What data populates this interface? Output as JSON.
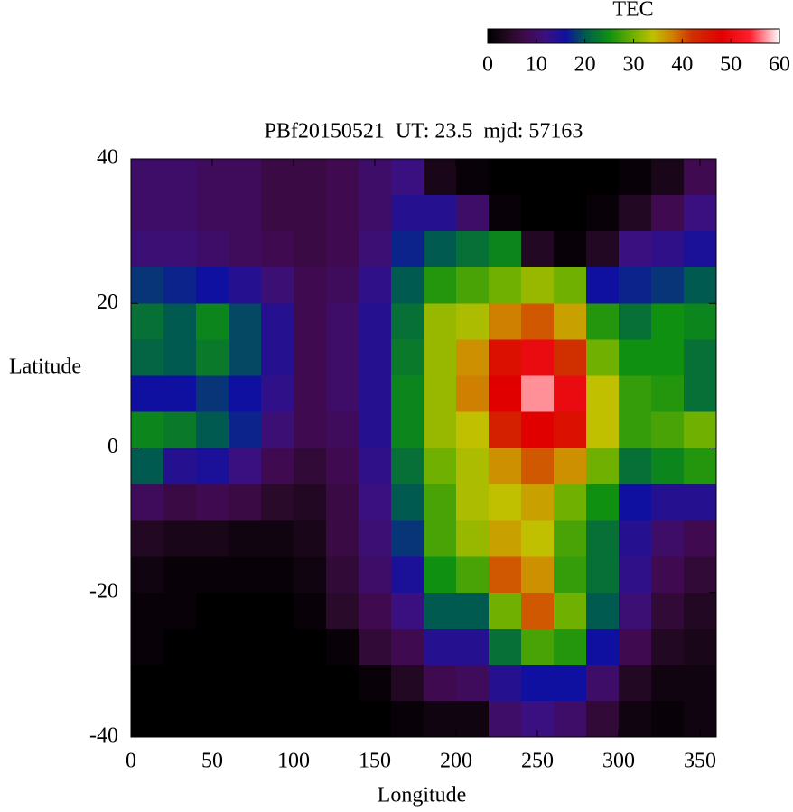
{
  "chart_data": {
    "type": "heatmap",
    "title": "PBf20150521  UT: 23.5  mjd: 57163",
    "xlabel": "Longitude",
    "ylabel": "Latitude",
    "xlim": [
      0,
      360
    ],
    "ylim": [
      -40,
      40
    ],
    "xticks": [
      0,
      50,
      100,
      150,
      200,
      250,
      300,
      350
    ],
    "yticks": [
      -40,
      -20,
      0,
      20,
      40
    ],
    "x_edges": [
      0,
      20,
      40,
      60,
      80,
      100,
      120,
      140,
      160,
      180,
      200,
      220,
      240,
      260,
      280,
      300,
      320,
      340,
      360
    ],
    "y_edges": [
      40,
      35,
      30,
      25,
      20,
      15,
      10,
      5,
      0,
      -5,
      -10,
      -15,
      -20,
      -25,
      -30,
      -35,
      -40
    ],
    "z": [
      [
        10,
        10,
        9,
        9,
        7,
        7,
        8,
        10,
        12,
        3,
        1,
        0,
        0,
        0,
        0,
        1,
        3,
        8
      ],
      [
        10,
        10,
        9,
        9,
        7,
        7,
        8,
        10,
        14,
        14,
        10,
        1,
        0,
        0,
        1,
        4,
        8,
        12
      ],
      [
        11,
        11,
        10,
        9,
        8,
        7,
        8,
        11,
        17,
        20,
        22,
        24,
        4,
        1,
        4,
        12,
        13,
        15
      ],
      [
        18,
        17,
        16,
        14,
        11,
        8,
        9,
        13,
        20,
        26,
        28,
        30,
        32,
        30,
        16,
        17,
        18,
        20
      ],
      [
        22,
        20,
        24,
        19,
        14,
        8,
        10,
        14,
        22,
        32,
        33,
        38,
        40,
        36,
        26,
        22,
        25,
        24
      ],
      [
        21,
        20,
        23,
        19,
        14,
        8,
        10,
        14,
        23,
        32,
        37,
        46,
        50,
        42,
        30,
        25,
        25,
        22
      ],
      [
        16,
        16,
        18,
        16,
        13,
        8,
        10,
        14,
        24,
        32,
        38,
        48,
        57,
        50,
        34,
        27,
        26,
        22
      ],
      [
        24,
        23,
        20,
        17,
        11,
        8,
        9,
        14,
        24,
        32,
        34,
        44,
        48,
        46,
        34,
        27,
        28,
        30
      ],
      [
        20,
        14,
        15,
        12,
        8,
        6,
        8,
        13,
        22,
        30,
        33,
        37,
        40,
        37,
        30,
        22,
        24,
        26
      ],
      [
        9,
        7,
        8,
        7,
        5,
        4,
        7,
        12,
        20,
        28,
        33,
        34,
        36,
        30,
        25,
        16,
        14,
        14
      ],
      [
        4,
        3,
        3,
        2,
        2,
        3,
        7,
        11,
        18,
        28,
        32,
        36,
        34,
        28,
        22,
        14,
        10,
        8
      ],
      [
        2,
        1,
        1,
        1,
        1,
        2,
        6,
        10,
        15,
        25,
        28,
        40,
        37,
        27,
        22,
        13,
        8,
        6
      ],
      [
        1,
        1,
        0,
        0,
        0,
        1,
        5,
        8,
        12,
        20,
        20,
        30,
        40,
        30,
        20,
        11,
        6,
        4
      ],
      [
        1,
        0,
        0,
        0,
        0,
        0,
        1,
        6,
        8,
        14,
        14,
        22,
        28,
        26,
        16,
        8,
        4,
        3
      ],
      [
        0,
        0,
        0,
        0,
        0,
        0,
        0,
        1,
        4,
        8,
        9,
        14,
        16,
        16,
        10,
        4,
        2,
        2
      ],
      [
        0,
        0,
        0,
        0,
        0,
        0,
        0,
        0,
        1,
        2,
        2,
        10,
        12,
        10,
        6,
        2,
        1,
        2
      ]
    ],
    "colorbar": {
      "label": "TEC",
      "lim": [
        0,
        60
      ],
      "ticks": [
        0,
        10,
        20,
        30,
        40,
        50,
        60
      ]
    },
    "colormap": [
      [
        0,
        "#000000"
      ],
      [
        5,
        "#2a0a2a"
      ],
      [
        8,
        "#400a50"
      ],
      [
        12,
        "#3a1080"
      ],
      [
        16,
        "#1010a0"
      ],
      [
        20,
        "#005a50"
      ],
      [
        25,
        "#109010"
      ],
      [
        30,
        "#70b000"
      ],
      [
        34,
        "#c0c000"
      ],
      [
        38,
        "#d08000"
      ],
      [
        42,
        "#d03000"
      ],
      [
        48,
        "#e00000"
      ],
      [
        54,
        "#ff2030"
      ],
      [
        60,
        "#ffffff"
      ]
    ]
  }
}
